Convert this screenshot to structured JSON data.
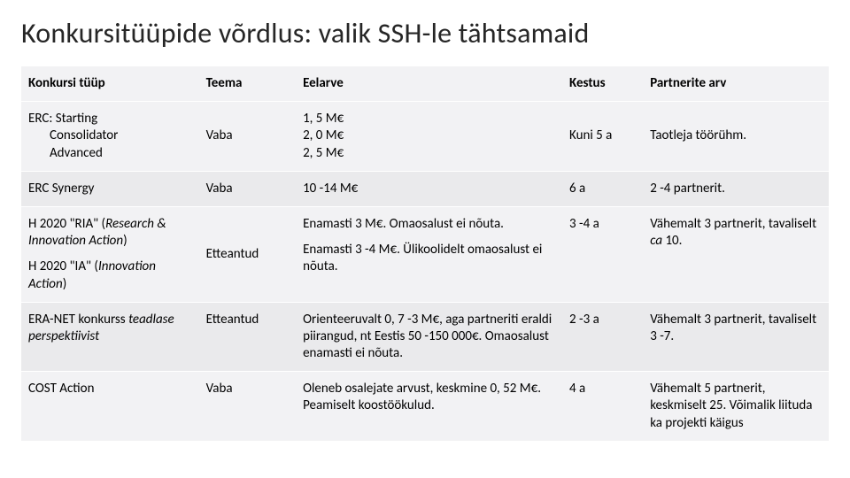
{
  "title": "Konkursitüüpide võrdlus: valik SSH-le tähtsamaid",
  "columns": [
    "Konkursi tüüp",
    "Teema",
    "Eelarve",
    "Kestus",
    "Partnerite arv"
  ],
  "header_bg": "#f2f2f4",
  "row_bg_a": "#f2f2f4",
  "row_bg_b": "#eaeaec",
  "rows": {
    "erc": {
      "type_line1": "ERC: Starting",
      "type_line2": "Consolidator",
      "type_line3": "Advanced",
      "theme": "Vaba",
      "budget_line1": "1, 5 M€",
      "budget_line2": "2, 0 M€",
      "budget_line3": "2, 5 M€",
      "duration": "Kuni 5 a",
      "partners": "Taotleja töörühm."
    },
    "synergy": {
      "type": "ERC Synergy",
      "theme": "Vaba",
      "budget": "10 -14 M€",
      "duration": "6 a",
      "partners": "2 -4 partnerit."
    },
    "ria_ia": {
      "ria_type_a": "H 2020 \"RIA\" (",
      "ria_type_b": "Research & Innovation Action",
      "ria_type_c": ")",
      "ia_type_a": "H 2020 \"IA\" (",
      "ia_type_b": "Innovation Action",
      "ia_type_c": ")",
      "theme": "Etteantud",
      "ria_budget": "Enamasti 3 M€. Omaosalust ei nõuta.",
      "ia_budget": "Enamasti 3 -4 M€. Ülikoolidelt omaosalust ei nõuta.",
      "duration": "3 -4 a",
      "partners_a": "Vähemalt 3 partnerit, tavaliselt ",
      "partners_b": "ca",
      "partners_c": " 10."
    },
    "eranet": {
      "type_a": "ERA-NET konkurss ",
      "type_b": "teadlase perspektiivist",
      "theme": "Etteantud",
      "budget": "Orienteeruvalt 0, 7 -3 M€, aga partneriti eraldi piirangud, nt Eestis 50 -150 000€. Omaosalust enamasti ei nõuta.",
      "duration": "2 -3 a",
      "partners": "Vähemalt 3 partnerit, tavaliselt 3 -7."
    },
    "cost": {
      "type": "COST Action",
      "theme": "Vaba",
      "budget": "Oleneb osalejate arvust, keskmine 0, 52 M€. Peamiselt koostöökulud.",
      "duration": "4 a",
      "partners": "Vähemalt 5 partnerit, keskmiselt 25. Võimalik liituda ka projekti käigus"
    }
  }
}
